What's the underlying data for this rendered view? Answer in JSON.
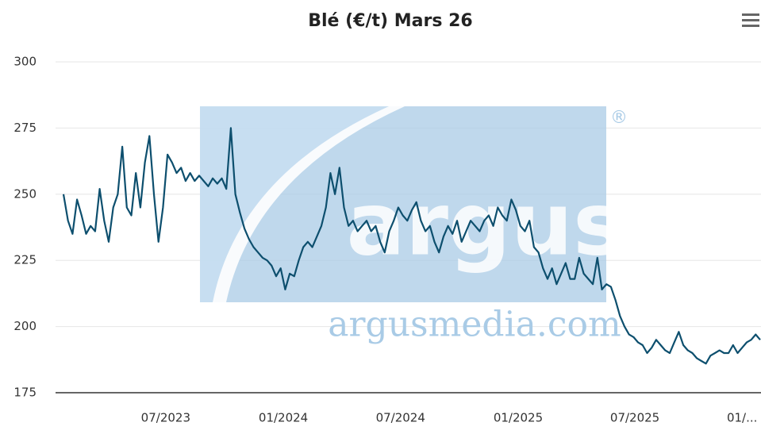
{
  "chart_data": {
    "type": "line",
    "title": "Blé (€/t) Mars 26",
    "series": [
      {
        "name": "Blé",
        "color": "#0d4f6e",
        "values": [
          250,
          240,
          235,
          248,
          242,
          235,
          238,
          236,
          252,
          240,
          232,
          245,
          250,
          268,
          245,
          242,
          258,
          245,
          262,
          272,
          250,
          232,
          245,
          265,
          262,
          258,
          260,
          255,
          258,
          255,
          257,
          255,
          253,
          256,
          254,
          256,
          252,
          275,
          250,
          243,
          237,
          233,
          230,
          228,
          226,
          225,
          223,
          219,
          222,
          214,
          220,
          219,
          225,
          230,
          232,
          230,
          234,
          238,
          245,
          258,
          250,
          260,
          245,
          238,
          240,
          236,
          238,
          240,
          236,
          238,
          232,
          228,
          236,
          240,
          245,
          242,
          240,
          244,
          247,
          240,
          236,
          238,
          232,
          228,
          234,
          238,
          235,
          240,
          232,
          236,
          240,
          238,
          236,
          240,
          242,
          238,
          245,
          242,
          240,
          248,
          244,
          238,
          236,
          240,
          230,
          228,
          222,
          218,
          222,
          216,
          220,
          224,
          218,
          218,
          226,
          220,
          218,
          216,
          226,
          214,
          216,
          215,
          210,
          204,
          200,
          197,
          196,
          194,
          193,
          190,
          192,
          195,
          193,
          191,
          190,
          194,
          198,
          193,
          191,
          190,
          188,
          187,
          186,
          189,
          190,
          191,
          190,
          190,
          193,
          190,
          192,
          194,
          195,
          197,
          195
        ]
      }
    ],
    "xlim": [
      0,
      154
    ],
    "xticks": [
      {
        "value": 22.6,
        "label": "07/2023"
      },
      {
        "value": 48.6,
        "label": "01/2024"
      },
      {
        "value": 74.5,
        "label": "07/2024"
      },
      {
        "value": 100.5,
        "label": "01/2025"
      },
      {
        "value": 126.3,
        "label": "07/2025"
      },
      {
        "value": 150,
        "label": "01/..."
      }
    ],
    "ylim": [
      175,
      300
    ],
    "yticks": [
      175,
      200,
      225,
      250,
      275,
      300
    ],
    "grid": true
  },
  "watermark": {
    "logo": "argus",
    "url": "argusmedia.com",
    "mark": "®"
  }
}
